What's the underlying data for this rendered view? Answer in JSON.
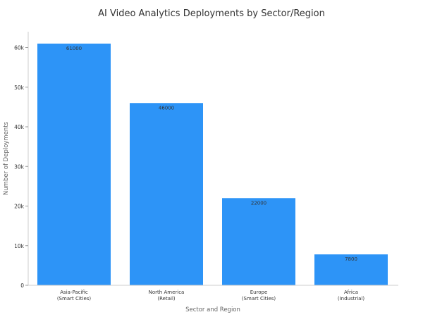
{
  "chart_data": {
    "type": "bar",
    "title": "AI Video Analytics Deployments by Sector/Region",
    "xlabel": "Sector and Region",
    "ylabel": "Number of Deployments",
    "categories": [
      [
        "Asia-Pacific",
        "(Smart Cities)"
      ],
      [
        "North America",
        "(Retail)"
      ],
      [
        "Europe",
        "(Smart Cities)"
      ],
      [
        "Africa",
        "(Industrial)"
      ]
    ],
    "values": [
      61000,
      46000,
      22000,
      7800
    ],
    "data_labels": [
      "61000",
      "46000",
      "22000",
      "7800"
    ],
    "ylim": [
      0,
      64000
    ],
    "yticks": [
      0,
      10000,
      20000,
      30000,
      40000,
      50000,
      60000
    ],
    "ytick_labels": [
      "0",
      "10k",
      "20k",
      "30k",
      "40k",
      "50k",
      "60k"
    ],
    "grid": false,
    "legend": "none",
    "bar_color": "#2d94f7"
  }
}
